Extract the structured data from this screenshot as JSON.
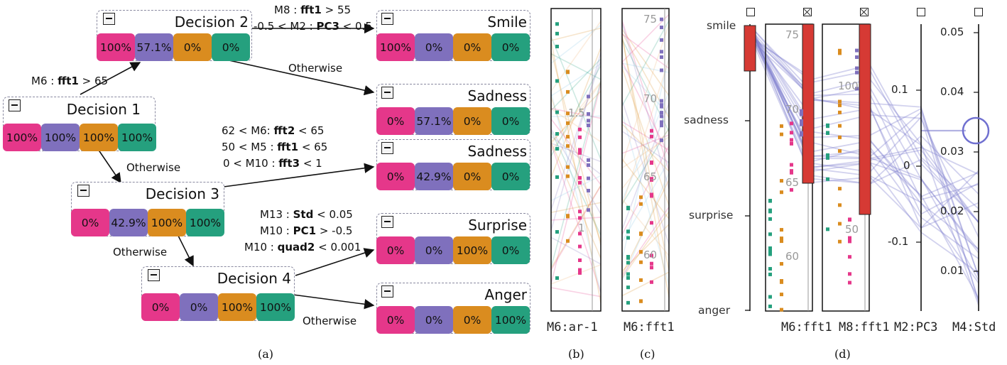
{
  "colors": {
    "smile": "#e5378a",
    "sadness": "#7f70bd",
    "surprise": "#da8c1f",
    "anger": "#25a07e",
    "highlight": "#d63a34",
    "axis_line": "#7f7fcf"
  },
  "tree": {
    "nodes": [
      {
        "id": "d1",
        "label": "Decision 1",
        "values": [
          "100%",
          "100%",
          "100%",
          "100%"
        ]
      },
      {
        "id": "d2",
        "label": "Decision 2",
        "values": [
          "100%",
          "57.1%",
          "0%",
          "0%"
        ]
      },
      {
        "id": "d3",
        "label": "Decision 3",
        "values": [
          "0%",
          "42.9%",
          "100%",
          "100%"
        ]
      },
      {
        "id": "d4",
        "label": "Decision 4",
        "values": [
          "0%",
          "0%",
          "100%",
          "100%"
        ]
      },
      {
        "id": "smile",
        "label": "Smile",
        "values": [
          "100%",
          "0%",
          "0%",
          "0%"
        ]
      },
      {
        "id": "sad1",
        "label": "Sadness",
        "values": [
          "0%",
          "57.1%",
          "0%",
          "0%"
        ]
      },
      {
        "id": "sad2",
        "label": "Sadness",
        "values": [
          "0%",
          "42.9%",
          "0%",
          "0%"
        ]
      },
      {
        "id": "surprise",
        "label": "Surprise",
        "values": [
          "0%",
          "0%",
          "100%",
          "0%"
        ]
      },
      {
        "id": "anger",
        "label": "Anger",
        "values": [
          "0%",
          "0%",
          "0%",
          "100%"
        ]
      }
    ],
    "edges": {
      "e1": {
        "pre": "M6 : ",
        "b": "fft1",
        "post": " > 65"
      },
      "e2a": {
        "pre": "M8 : ",
        "b": "fft1",
        "post": " > 55"
      },
      "e2b": {
        "pre": "-0.5 < M2 : ",
        "b": "PC3",
        "post": " < 0.5"
      },
      "e3": "Otherwise",
      "e4": "Otherwise",
      "e5a": {
        "pre": "62 < M6: ",
        "b": "fft2",
        "post": " < 65"
      },
      "e5b": {
        "pre": "50 < M5 : ",
        "b": "fft1",
        "post": " < 65"
      },
      "e5c": {
        "pre": "0 < M10 : ",
        "b": "fft3",
        "post": " < 1"
      },
      "e6": "Otherwise",
      "e7a": {
        "pre": "M13 : ",
        "b": "Std",
        "post": " < 0.05"
      },
      "e7b": {
        "pre": "M10 : ",
        "b": "PC1",
        "post": " > -0.5"
      },
      "e7c": {
        "pre": "M10 : ",
        "b": "quad2",
        "post": " < 0.001"
      },
      "e8": "Otherwise"
    }
  },
  "panel_b": {
    "axis": "M6:ar-1",
    "ticks": [
      "1.5",
      "1"
    ]
  },
  "panel_c": {
    "axis": "M6:fft1",
    "ticks": [
      "75",
      "70",
      "65",
      "60"
    ]
  },
  "panel_d": {
    "categories": [
      "smile",
      "sadness",
      "surprise",
      "anger"
    ],
    "axes": [
      {
        "name": "M6:fft1",
        "ticks": [
          "75",
          "70",
          "65",
          "60"
        ],
        "checked": true
      },
      {
        "name": "M8:fft1",
        "ticks": [
          "100",
          "50"
        ],
        "checked": true
      },
      {
        "name": "M2:PC3",
        "ticks": [
          "0.1",
          "0",
          "-0.1"
        ],
        "checked": false
      },
      {
        "name": "M4:Std",
        "ticks": [
          "0.05",
          "0.04",
          "0.03",
          "0.02",
          "0.01"
        ],
        "checked": false
      }
    ]
  },
  "captions": [
    "(a)",
    "(b)",
    "(c)",
    "(d)"
  ]
}
